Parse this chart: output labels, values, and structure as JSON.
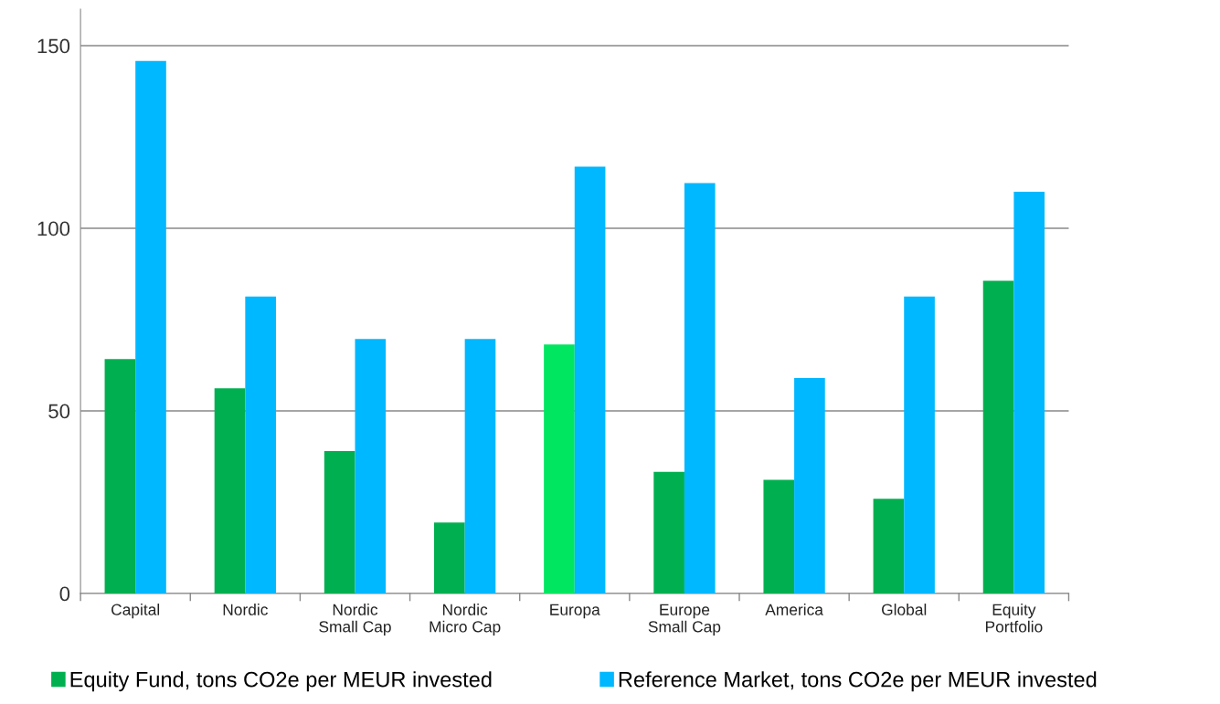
{
  "chart_data": {
    "type": "bar",
    "categories": [
      "Capital",
      "Nordic",
      "Nordic\nSmall Cap",
      "Nordic\nMicro Cap",
      "Europa",
      "Europe\nSmall Cap",
      "America",
      "Global",
      "Equity\nPortfolio"
    ],
    "series": [
      {
        "name": "Equity Fund, tons CO2e per MEUR invested",
        "color": "#00b050",
        "colors": [
          "#00b050",
          "#00b050",
          "#00b050",
          "#00b050",
          "#00e660",
          "#00b050",
          "#00b050",
          "#00b050",
          "#00b050"
        ],
        "values": [
          64.2,
          56.2,
          39,
          19.4,
          68.2,
          33.3,
          31.1,
          25.9,
          85.6
        ]
      },
      {
        "name": "Reference Market, tons CO2e per MEUR invested",
        "color": "#00b8ff",
        "values": [
          145.8,
          81.3,
          69.7,
          69.7,
          116.9,
          112.4,
          59,
          81.3,
          110
        ]
      }
    ],
    "ylim": [
      0,
      160
    ],
    "yticks": [
      0,
      50,
      100,
      150
    ],
    "grid": "y",
    "legend": "bottom"
  }
}
